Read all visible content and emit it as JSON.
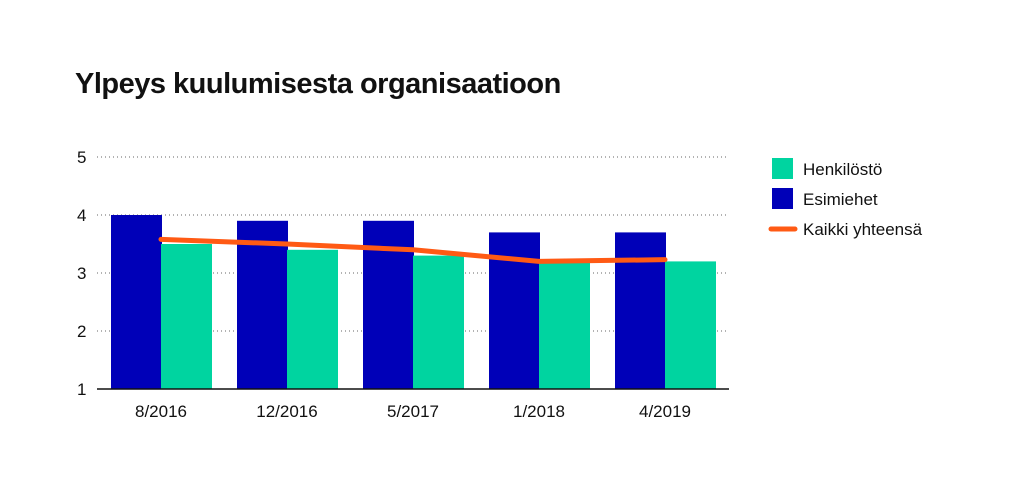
{
  "colors": {
    "henkilosto": "#00d4a0",
    "esimiehet": "#0000b8",
    "kaikki": "#ff5a14",
    "grid": "#666666",
    "axis": "#111111"
  },
  "chart_data": {
    "type": "bar",
    "title": "Ylpeys kuulumisesta organisaatioon",
    "xlabel": "",
    "ylabel": "",
    "ylim": [
      1,
      5
    ],
    "yticks": [
      "1",
      "2",
      "3",
      "4",
      "5"
    ],
    "grid": true,
    "legend_position": "right",
    "categories": [
      "8/2016",
      "12/2016",
      "5/2017",
      "1/2018",
      "4/2019"
    ],
    "series": [
      {
        "name": "Esimiehet",
        "type": "bar",
        "color": "#0000b8",
        "values": [
          4.0,
          3.9,
          3.9,
          3.7,
          3.7
        ]
      },
      {
        "name": "Henkilöstö",
        "type": "bar",
        "color": "#00d4a0",
        "values": [
          3.5,
          3.4,
          3.3,
          3.2,
          3.2
        ]
      },
      {
        "name": "Kaikki yhteensä",
        "type": "line",
        "color": "#ff5a14",
        "values": [
          3.58,
          3.5,
          3.4,
          3.2,
          3.23
        ]
      }
    ],
    "legend": [
      "Henkilöstö",
      "Esimiehet",
      "Kaikki yhteensä"
    ]
  }
}
